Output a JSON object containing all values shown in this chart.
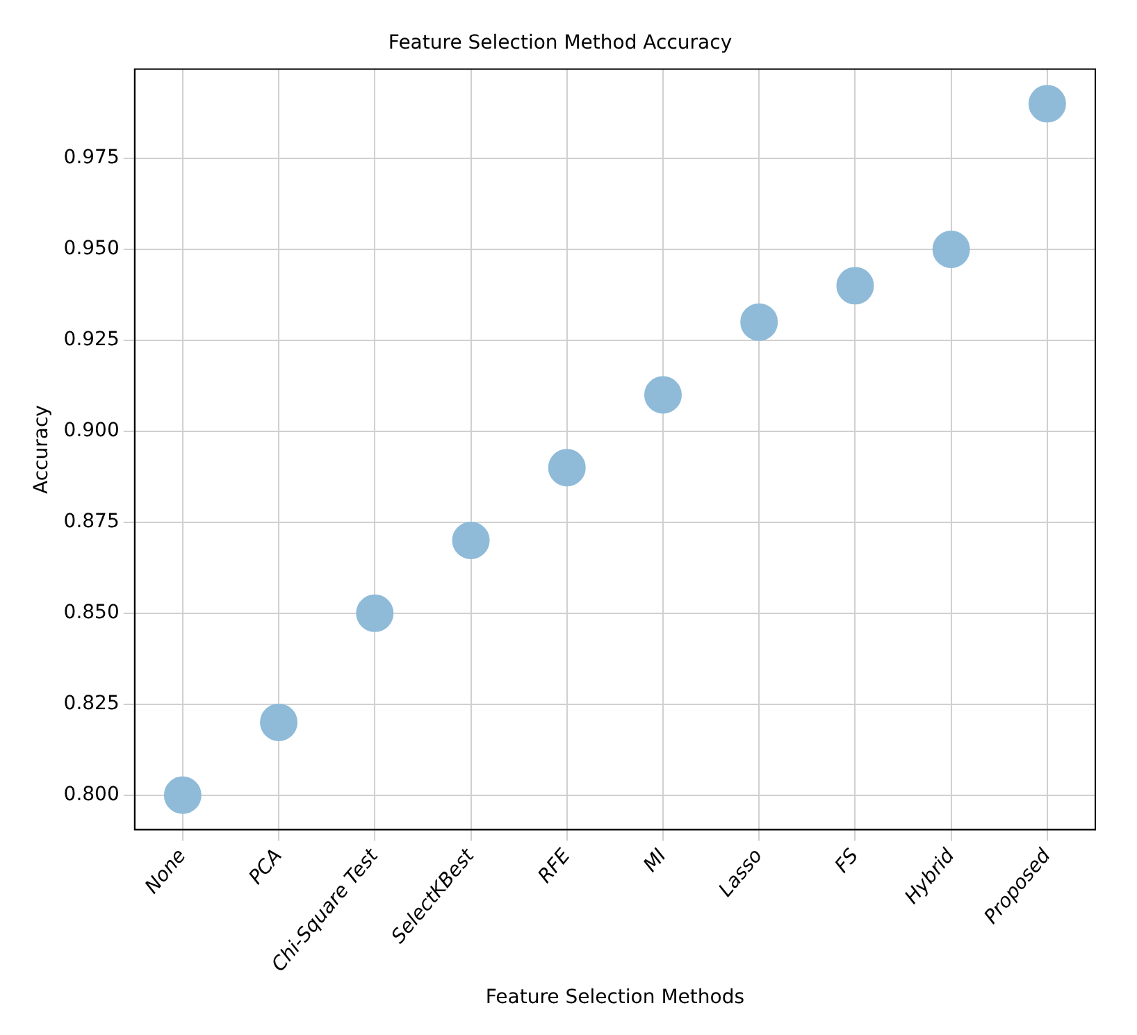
{
  "chart_data": {
    "type": "scatter",
    "title": "Feature Selection Method Accuracy",
    "xlabel": "Feature Selection Methods",
    "ylabel": "Accuracy",
    "categories": [
      "None",
      "PCA",
      "Chi-Square Test",
      "SelectKBest",
      "RFE",
      "MI",
      "Lasso",
      "FS",
      "Hybrid",
      "Proposed"
    ],
    "series": [
      {
        "color": "#8fbbd9",
        "values": [
          0.8,
          0.82,
          0.85,
          0.87,
          0.89,
          0.91,
          0.93,
          0.94,
          0.95,
          0.99
        ]
      }
    ],
    "ylim": [
      0.7905,
      0.9995
    ],
    "yticks": [
      {
        "value": 0.8,
        "label": "0.800"
      },
      {
        "value": 0.825,
        "label": "0.825"
      },
      {
        "value": 0.85,
        "label": "0.850"
      },
      {
        "value": 0.875,
        "label": "0.875"
      },
      {
        "value": 0.9,
        "label": "0.900"
      },
      {
        "value": 0.925,
        "label": "0.925"
      },
      {
        "value": 0.95,
        "label": "0.950"
      },
      {
        "value": 0.975,
        "label": "0.975"
      }
    ],
    "grid": true,
    "legend": false,
    "marker": "circle"
  }
}
